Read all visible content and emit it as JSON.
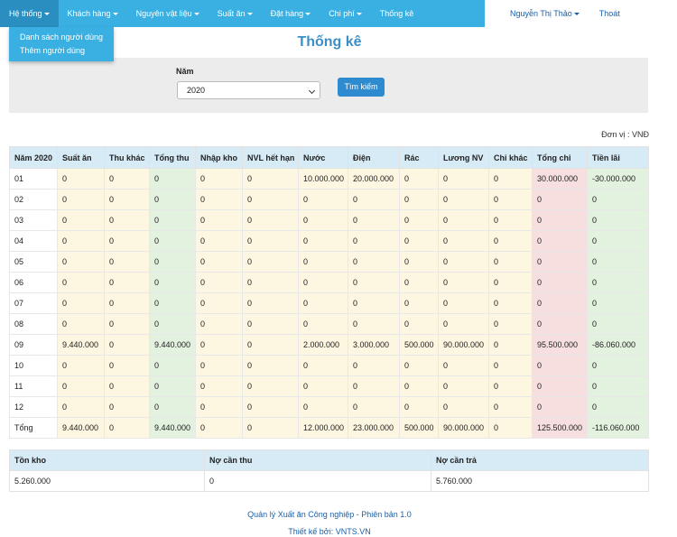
{
  "nav": {
    "items": [
      {
        "label": "Hệ thống",
        "caret": true
      },
      {
        "label": "Khách hàng",
        "caret": true
      },
      {
        "label": "Nguyên vật liệu",
        "caret": true
      },
      {
        "label": "Suất ăn",
        "caret": true
      },
      {
        "label": "Đặt hàng",
        "caret": true
      },
      {
        "label": "Chi phí",
        "caret": true
      },
      {
        "label": "Thống kê",
        "caret": false
      }
    ],
    "user": "Nguyễn Thị Thảo",
    "logout": "Thoát"
  },
  "dropdown": {
    "items": [
      "Danh sách người dùng",
      "Thêm người dùng"
    ]
  },
  "page": {
    "title": "Thống kê"
  },
  "search": {
    "label": "Năm",
    "year": "2020",
    "button": "Tìm kiếm"
  },
  "unit": "Đơn vị : VNĐ",
  "table": {
    "headers": [
      "Năm 2020",
      "Suất ăn",
      "Thu khác",
      "Tổng thu",
      "Nhập kho",
      "NVL hết hạn",
      "Nước",
      "Điện",
      "Rác",
      "Lương NV",
      "Chi khác",
      "Tổng chi",
      "Tiền lãi"
    ],
    "rows": [
      [
        "01",
        "0",
        "0",
        "0",
        "0",
        "0",
        "10.000.000",
        "20.000.000",
        "0",
        "0",
        "0",
        "30.000.000",
        "-30.000.000"
      ],
      [
        "02",
        "0",
        "0",
        "0",
        "0",
        "0",
        "0",
        "0",
        "0",
        "0",
        "0",
        "0",
        "0"
      ],
      [
        "03",
        "0",
        "0",
        "0",
        "0",
        "0",
        "0",
        "0",
        "0",
        "0",
        "0",
        "0",
        "0"
      ],
      [
        "04",
        "0",
        "0",
        "0",
        "0",
        "0",
        "0",
        "0",
        "0",
        "0",
        "0",
        "0",
        "0"
      ],
      [
        "05",
        "0",
        "0",
        "0",
        "0",
        "0",
        "0",
        "0",
        "0",
        "0",
        "0",
        "0",
        "0"
      ],
      [
        "06",
        "0",
        "0",
        "0",
        "0",
        "0",
        "0",
        "0",
        "0",
        "0",
        "0",
        "0",
        "0"
      ],
      [
        "07",
        "0",
        "0",
        "0",
        "0",
        "0",
        "0",
        "0",
        "0",
        "0",
        "0",
        "0",
        "0"
      ],
      [
        "08",
        "0",
        "0",
        "0",
        "0",
        "0",
        "0",
        "0",
        "0",
        "0",
        "0",
        "0",
        "0"
      ],
      [
        "09",
        "9.440.000",
        "0",
        "9.440.000",
        "0",
        "0",
        "2.000.000",
        "3.000.000",
        "500.000",
        "90.000.000",
        "0",
        "95.500.000",
        "-86.060.000"
      ],
      [
        "10",
        "0",
        "0",
        "0",
        "0",
        "0",
        "0",
        "0",
        "0",
        "0",
        "0",
        "0",
        "0"
      ],
      [
        "11",
        "0",
        "0",
        "0",
        "0",
        "0",
        "0",
        "0",
        "0",
        "0",
        "0",
        "0",
        "0"
      ],
      [
        "12",
        "0",
        "0",
        "0",
        "0",
        "0",
        "0",
        "0",
        "0",
        "0",
        "0",
        "0",
        "0"
      ],
      [
        "Tổng",
        "9.440.000",
        "0",
        "9.440.000",
        "0",
        "0",
        "12.000.000",
        "23.000.000",
        "500.000",
        "90.000.000",
        "0",
        "125.500.000",
        "-116.060.000"
      ]
    ]
  },
  "summary": {
    "headers": [
      "Tồn kho",
      "Nợ cần thu",
      "Nợ cần trả"
    ],
    "values": [
      "5.260.000",
      "0",
      "5.760.000"
    ]
  },
  "footer": {
    "line1": "Quản lý Xuất ăn Công nghiệp - Phiên bản 1.0",
    "line2": "Thiết kế bởi: VNTS.VN"
  }
}
